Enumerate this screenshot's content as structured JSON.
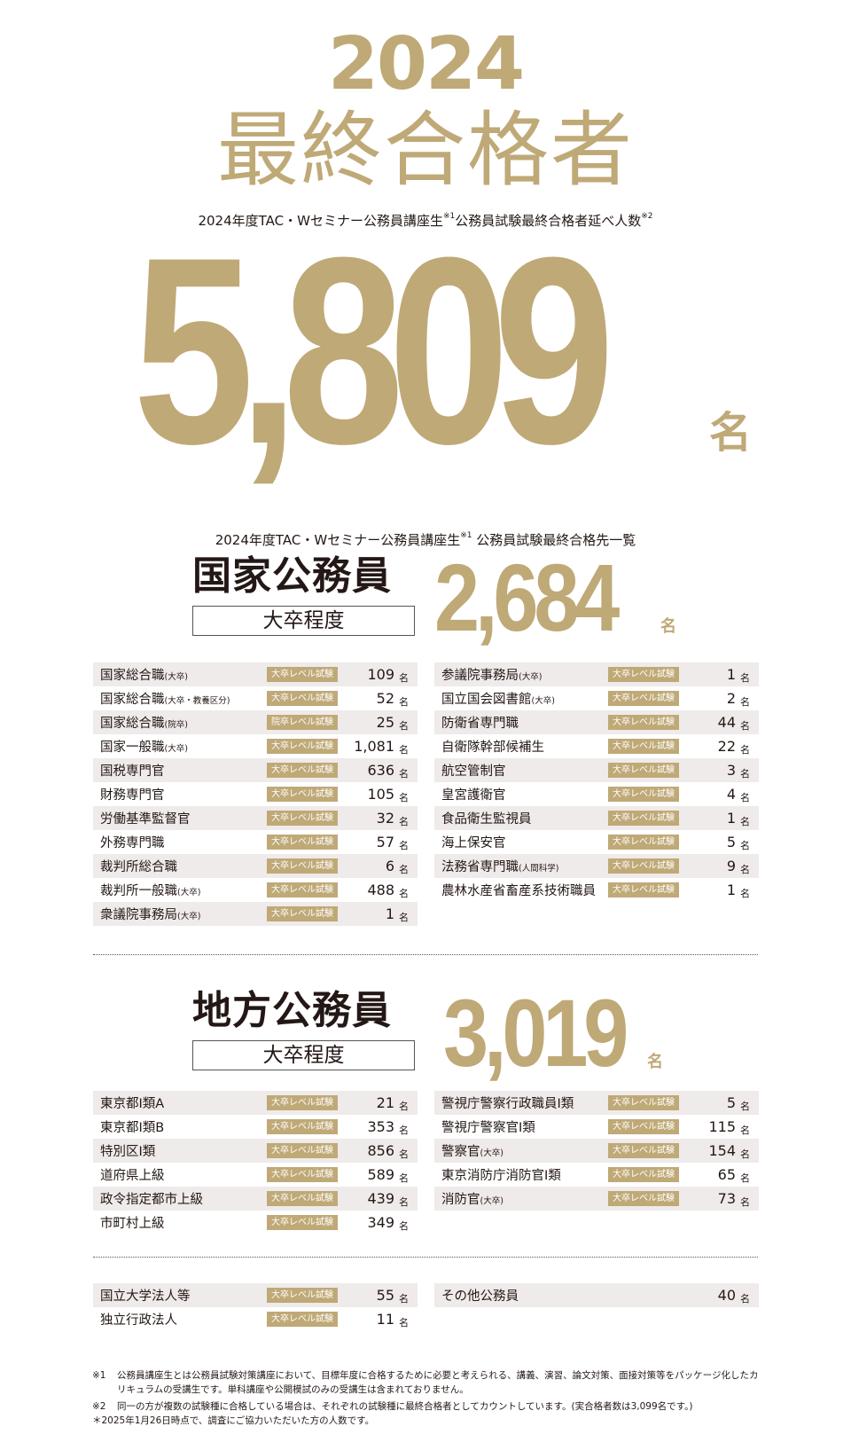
{
  "header": {
    "year": "2024",
    "title": "最終合格者",
    "subtitle": "2024年度TAC・Wセミナー公務員講座生",
    "subtitle_note1": "※1",
    "subtitle_tail": "公務員試験最終合格者延べ人数",
    "subtitle_note2": "※2",
    "total": "5,809",
    "unit": "名"
  },
  "list_title": {
    "text": "2024年度TAC・Wセミナー公務員講座生",
    "note": "※1",
    "tail": " 公務員試験最終合格先一覧"
  },
  "colors": {
    "gold": "#bfa977",
    "row_shade": "#efebea"
  },
  "national": {
    "heading": "国家公務員",
    "level": "大卒程度",
    "total": "2,684",
    "unit": "名",
    "left": [
      {
        "name": "国家総合職",
        "note": "(大卒)",
        "badge": "大卒レベル試験",
        "count": "109"
      },
      {
        "name": "国家総合職",
        "note": "(大卒・教養区分)",
        "badge": "大卒レベル試験",
        "count": "52"
      },
      {
        "name": "国家総合職",
        "note": "(院卒)",
        "badge": "院卒レベル試験",
        "count": "25"
      },
      {
        "name": "国家一般職",
        "note": "(大卒)",
        "badge": "大卒レベル試験",
        "count": "1,081"
      },
      {
        "name": "国税専門官",
        "note": "",
        "badge": "大卒レベル試験",
        "count": "636"
      },
      {
        "name": "財務専門官",
        "note": "",
        "badge": "大卒レベル試験",
        "count": "105"
      },
      {
        "name": "労働基準監督官",
        "note": "",
        "badge": "大卒レベル試験",
        "count": "32"
      },
      {
        "name": "外務専門職",
        "note": "",
        "badge": "大卒レベル試験",
        "count": "57"
      },
      {
        "name": "裁判所総合職",
        "note": "",
        "badge": "大卒レベル試験",
        "count": "6"
      },
      {
        "name": "裁判所一般職",
        "note": "(大卒)",
        "badge": "大卒レベル試験",
        "count": "488"
      },
      {
        "name": "衆議院事務局",
        "note": "(大卒)",
        "badge": "大卒レベル試験",
        "count": "1"
      }
    ],
    "right": [
      {
        "name": "参議院事務局",
        "note": "(大卒)",
        "badge": "大卒レベル試験",
        "count": "1"
      },
      {
        "name": "国立国会図書館",
        "note": "(大卒)",
        "badge": "大卒レベル試験",
        "count": "2"
      },
      {
        "name": "防衛省専門職",
        "note": "",
        "badge": "大卒レベル試験",
        "count": "44"
      },
      {
        "name": "自衛隊幹部候補生",
        "note": "",
        "badge": "大卒レベル試験",
        "count": "22"
      },
      {
        "name": "航空管制官",
        "note": "",
        "badge": "大卒レベル試験",
        "count": "3"
      },
      {
        "name": "皇宮護衛官",
        "note": "",
        "badge": "大卒レベル試験",
        "count": "4"
      },
      {
        "name": "食品衛生監視員",
        "note": "",
        "badge": "大卒レベル試験",
        "count": "1"
      },
      {
        "name": "海上保安官",
        "note": "",
        "badge": "大卒レベル試験",
        "count": "5"
      },
      {
        "name": "法務省専門職",
        "note": "(人間科学)",
        "badge": "大卒レベル試験",
        "count": "9"
      },
      {
        "name": "農林水産省畜産系技術職員",
        "note": "",
        "badge": "大卒レベル試験",
        "count": "1"
      }
    ]
  },
  "local": {
    "heading": "地方公務員",
    "level": "大卒程度",
    "total": "3,019",
    "unit": "名",
    "left": [
      {
        "name": "東京都Ⅰ類A",
        "note": "",
        "badge": "大卒レベル試験",
        "count": "21"
      },
      {
        "name": "東京都Ⅰ類B",
        "note": "",
        "badge": "大卒レベル試験",
        "count": "353"
      },
      {
        "name": "特別区Ⅰ類",
        "note": "",
        "badge": "大卒レベル試験",
        "count": "856"
      },
      {
        "name": "道府県上級",
        "note": "",
        "badge": "大卒レベル試験",
        "count": "589"
      },
      {
        "name": "政令指定都市上級",
        "note": "",
        "badge": "大卒レベル試験",
        "count": "439"
      },
      {
        "name": "市町村上級",
        "note": "",
        "badge": "大卒レベル試験",
        "count": "349"
      }
    ],
    "right": [
      {
        "name": "警視庁警察行政職員Ⅰ類",
        "note": "",
        "badge": "大卒レベル試験",
        "count": "5"
      },
      {
        "name": "警視庁警察官Ⅰ類",
        "note": "",
        "badge": "大卒レベル試験",
        "count": "115"
      },
      {
        "name": "警察官",
        "note": "(大卒)",
        "badge": "大卒レベル試験",
        "count": "154"
      },
      {
        "name": "東京消防庁消防官Ⅰ類",
        "note": "",
        "badge": "大卒レベル試験",
        "count": "65"
      },
      {
        "name": "消防官",
        "note": "(大卒)",
        "badge": "大卒レベル試験",
        "count": "73"
      }
    ]
  },
  "other": {
    "left": [
      {
        "name": "国立大学法人等",
        "note": "",
        "badge": "大卒レベル試験",
        "count": "55"
      },
      {
        "name": "独立行政法人",
        "note": "",
        "badge": "大卒レベル試験",
        "count": "11"
      }
    ],
    "right": [
      {
        "name": "その他公務員",
        "note": "",
        "badge": "",
        "count": "40"
      }
    ]
  },
  "footnotes": [
    {
      "mark": "※1",
      "text": "公務員講座生とは公務員試験対策講座において、目標年度に合格するために必要と考えられる、講義、演習、論文対策、面接対策等をパッケージ化したカリキュラムの受講生です。単科講座や公開模試のみの受講生は含まれておりません。"
    },
    {
      "mark": "※2",
      "text": "同一の方が複数の試験種に合格している場合は、それぞれの試験種に最終合格者としてカウントしています。(実合格者数は3,099名です。)"
    },
    {
      "mark": "",
      "text": "＊2025年1月26日時点で、調査にご協力いただいた方の人数です。"
    }
  ]
}
